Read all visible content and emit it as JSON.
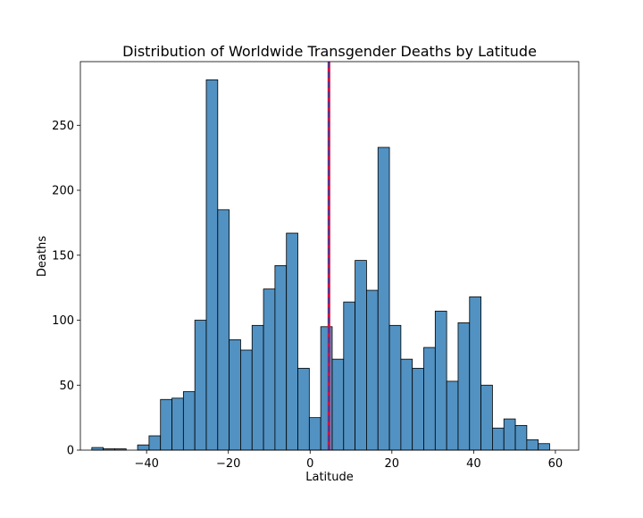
{
  "chart_data": {
    "type": "bar",
    "title": "Distribution of Worldwide Transgender Deaths by Latitude",
    "xlabel": "Latitude",
    "ylabel": "Deaths",
    "xlim": [
      -56.2,
      65.7
    ],
    "ylim": [
      0,
      299
    ],
    "xticks": [
      -40,
      -20,
      0,
      20,
      40,
      60
    ],
    "yticks": [
      0,
      50,
      100,
      150,
      200,
      250
    ],
    "bin_start": -53.4,
    "bin_width": 2.8,
    "counts": [
      2,
      1,
      1,
      0,
      4,
      11,
      39,
      40,
      45,
      100,
      285,
      185,
      85,
      77,
      96,
      124,
      142,
      167,
      63,
      25,
      95,
      70,
      114,
      146,
      123,
      233,
      96,
      70,
      63,
      79,
      107,
      53,
      98,
      118,
      50,
      17,
      24,
      19,
      8,
      5
    ],
    "mean_line_x": 4.6,
    "grid": false,
    "colors": {
      "bar_fill": "#5292c2",
      "bar_edge": "#000000",
      "mean_line_outer": "#cc1144",
      "mean_line_inner": "#2244aa"
    }
  }
}
